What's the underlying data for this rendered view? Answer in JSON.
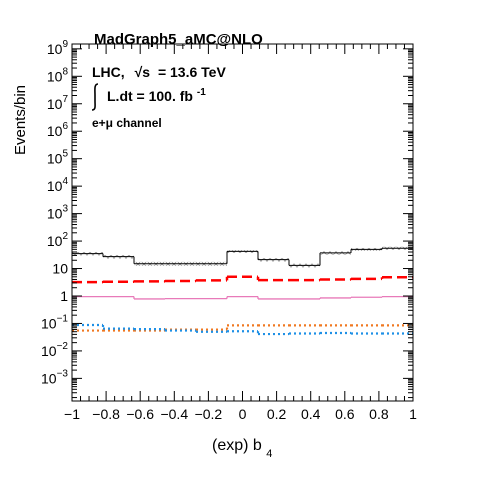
{
  "chart_data": {
    "type": "step-histogram",
    "header": "MadGraph5_aMC@NLO",
    "annotations": {
      "energy_prefix": "LHC,",
      "energy_sqrt": "√s",
      "energy_value": "= 13.6 TeV",
      "lumi_text": "L.dt = 100. fb",
      "lumi_exp": "-1",
      "channel": "e+μ channel"
    },
    "xlabel_main": "(exp) b",
    "xlabel_sub": "4",
    "ylabel": "Events/bin",
    "xlim": [
      -1,
      1
    ],
    "ylim": [
      0.00015,
      1500000000
    ],
    "yscale": "log",
    "x_ticks": [
      {
        "value": -1,
        "label": "−1"
      },
      {
        "value": -0.8,
        "label": "−0.8"
      },
      {
        "value": -0.6,
        "label": "−0.6"
      },
      {
        "value": -0.4,
        "label": "−0.4"
      },
      {
        "value": -0.2,
        "label": "−0.2"
      },
      {
        "value": 0,
        "label": "0"
      },
      {
        "value": 0.2,
        "label": "0.2"
      },
      {
        "value": 0.4,
        "label": "0.4"
      },
      {
        "value": 0.6,
        "label": "0.6"
      },
      {
        "value": 0.8,
        "label": "0.8"
      },
      {
        "value": 1,
        "label": "1"
      }
    ],
    "y_ticks": [
      {
        "value": 0.001,
        "base": "10",
        "exp": "−3"
      },
      {
        "value": 0.01,
        "base": "10",
        "exp": "−2"
      },
      {
        "value": 0.1,
        "base": "10",
        "exp": "−1"
      },
      {
        "value": 1,
        "base": "1",
        "exp": ""
      },
      {
        "value": 10,
        "base": "10",
        "exp": ""
      },
      {
        "value": 100,
        "base": "10",
        "exp": "2"
      },
      {
        "value": 1000,
        "base": "10",
        "exp": "3"
      },
      {
        "value": 10000,
        "base": "10",
        "exp": "4"
      },
      {
        "value": 100000,
        "base": "10",
        "exp": "5"
      },
      {
        "value": 1000000,
        "base": "10",
        "exp": "6"
      },
      {
        "value": 10000000,
        "base": "10",
        "exp": "7"
      },
      {
        "value": 100000000,
        "base": "10",
        "exp": "8"
      },
      {
        "value": 1000000000,
        "base": "10",
        "exp": "9"
      }
    ],
    "bin_edges": [
      -1,
      -0.8182,
      -0.6364,
      -0.4545,
      -0.2727,
      -0.0909,
      0.0909,
      0.2727,
      0.4545,
      0.6364,
      0.8182,
      1
    ],
    "series": [
      {
        "color": "#000000",
        "dash": "",
        "width": 1,
        "band": true,
        "values": [
          35,
          27,
          15,
          15,
          15,
          42,
          21,
          13,
          37,
          50,
          55
        ],
        "band_low": [
          30,
          23,
          12.5,
          12.5,
          12.5,
          37,
          18,
          11,
          32,
          44,
          48
        ],
        "band_high": [
          40,
          31,
          17.5,
          17.5,
          17.5,
          47,
          24,
          15,
          42,
          56,
          62
        ]
      },
      {
        "color": "#ff0000",
        "dash": "10,5",
        "width": 2.5,
        "band": false,
        "values": [
          3.2,
          3.3,
          3.4,
          3.5,
          3.7,
          5.0,
          3.8,
          3.8,
          4.0,
          4.2,
          4.8
        ]
      },
      {
        "color": "#e87ab9",
        "dash": "",
        "width": 1.3,
        "band": false,
        "values": [
          0.95,
          0.95,
          0.78,
          0.8,
          0.8,
          0.95,
          0.78,
          0.78,
          0.85,
          0.9,
          0.95
        ]
      },
      {
        "color": "#f07820",
        "dash": "2,3",
        "width": 2.2,
        "band": false,
        "values": [
          0.055,
          0.055,
          0.055,
          0.06,
          0.06,
          0.085,
          0.085,
          0.085,
          0.085,
          0.085,
          0.085
        ]
      },
      {
        "color": "#1e90e6",
        "dash": "2,3",
        "width": 2.2,
        "band": false,
        "values": [
          0.088,
          0.065,
          0.062,
          0.055,
          0.05,
          0.052,
          0.041,
          0.043,
          0.045,
          0.043,
          0.043
        ]
      }
    ]
  }
}
